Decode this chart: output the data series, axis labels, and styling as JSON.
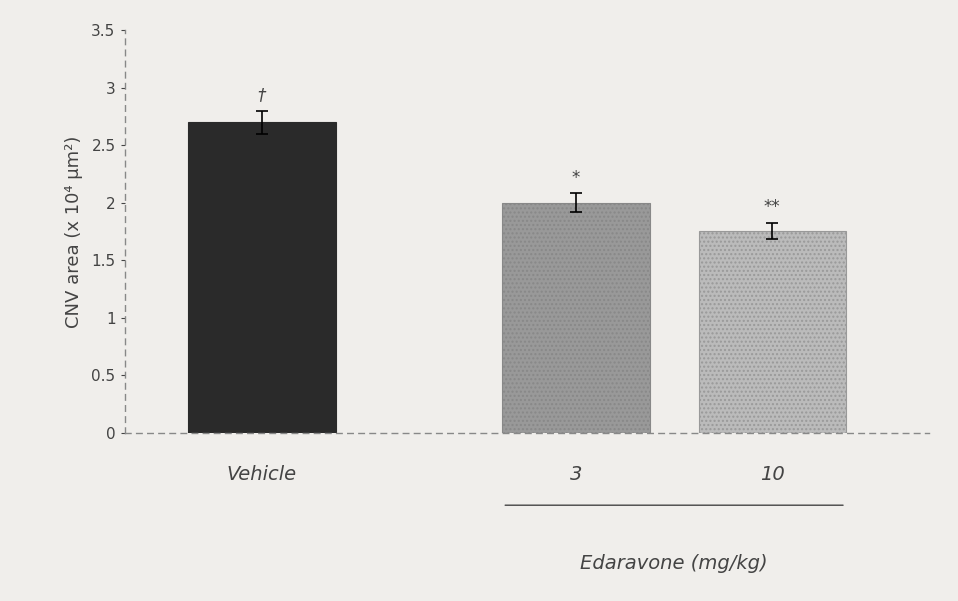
{
  "categories": [
    "Vehicle",
    "3",
    "10"
  ],
  "values": [
    2.7,
    2.0,
    1.75
  ],
  "errors": [
    0.1,
    0.08,
    0.07
  ],
  "bar_colors": [
    "#2a2a2a",
    "#999999",
    "#bbbbbb"
  ],
  "bar_edgecolors": [
    "#2a2a2a",
    "#888888",
    "#999999"
  ],
  "hatch_patterns": [
    "....",
    "....",
    "...."
  ],
  "ylabel": "CNV area (x 10⁴ μm²)",
  "xlabel_vehicle": "Vehicle",
  "xlabel_edaravone": "Edaravone (mg/kg)",
  "edaravone_doses": [
    "3",
    "10"
  ],
  "ylim": [
    0,
    3.5
  ],
  "yticks": [
    0,
    0.5,
    1.0,
    1.5,
    2.0,
    2.5,
    3.0,
    3.5
  ],
  "ytick_labels": [
    "0",
    "0.5",
    "1",
    "1.5",
    "2",
    "2.5",
    "3",
    "3.5"
  ],
  "significance_vehicle": "†",
  "significance_3": "*",
  "significance_10": "**",
  "background_color": "#f0eeeb",
  "axis_color": "#888888",
  "text_color": "#444444",
  "font_size_ticks": 11,
  "font_size_ylabel": 13,
  "font_size_xlabel": 14,
  "font_size_xticks": 14,
  "font_size_sig": 12,
  "x_positions": [
    1.0,
    2.6,
    3.6
  ],
  "bar_width": 0.75,
  "xlim": [
    0.3,
    4.4
  ]
}
